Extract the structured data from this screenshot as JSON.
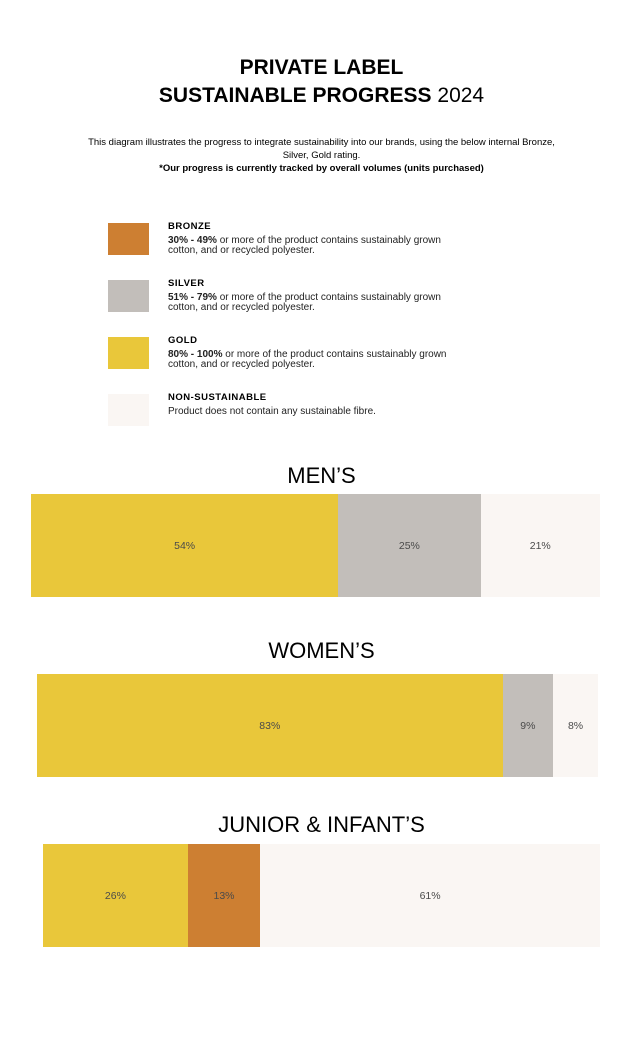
{
  "header": {
    "title_line1": "PRIVATE LABEL",
    "title_line2_bold": "SUSTAINABLE PROGRESS",
    "title_line2_year": "2024",
    "intro_line1": "This diagram illustrates the progress to integrate sustainability into our brands, using the below internal Bronze,",
    "intro_line2": "Silver, Gold rating.",
    "intro_note": "*Our progress is currently tracked by overall volumes (units purchased)"
  },
  "legend": {
    "items": [
      {
        "name": "BRONZE",
        "range": "30% - 49%",
        "desc_rest": " or more of the product contains sustainably grown",
        "desc_line2": "cotton, and or recycled polyester."
      },
      {
        "name": "SILVER",
        "range": "51% - 79%",
        "desc_rest": " or more of the product contains sustainably grown",
        "desc_line2": "cotton, and or recycled polyester."
      },
      {
        "name": "GOLD",
        "range": "80% - 100%",
        "desc_rest": " or more of the product contains sustainably grown",
        "desc_line2": "cotton, and or recycled polyester."
      },
      {
        "name": "NON-SUSTAINABLE",
        "range": "",
        "desc_rest": "Product does not contain any sustainable fibre.",
        "desc_line2": ""
      }
    ]
  },
  "colors": {
    "bronze": "#CD7F32",
    "silver": "#C2BEBA",
    "gold": "#E9C73A",
    "non_sustainable": "#FAF6F3"
  },
  "chart_data": [
    {
      "type": "bar",
      "title": "MEN’S",
      "orientation": "stacked-horizontal-100",
      "segments": [
        {
          "category": "GOLD",
          "value": 54,
          "label": "54%"
        },
        {
          "category": "SILVER",
          "value": 25,
          "label": "25%"
        },
        {
          "category": "NON-SUSTAINABLE",
          "value": 21,
          "label": "21%"
        }
      ]
    },
    {
      "type": "bar",
      "title": "WOMEN’S",
      "orientation": "stacked-horizontal-100",
      "segments": [
        {
          "category": "GOLD",
          "value": 83,
          "label": "83%"
        },
        {
          "category": "SILVER",
          "value": 9,
          "label": "9%"
        },
        {
          "category": "NON-SUSTAINABLE",
          "value": 8,
          "label": "8%"
        }
      ]
    },
    {
      "type": "bar",
      "title": "JUNIOR & INFANT’S",
      "orientation": "stacked-horizontal-100",
      "segments": [
        {
          "category": "GOLD",
          "value": 26,
          "label": "26%"
        },
        {
          "category": "BRONZE",
          "value": 13,
          "label": "13%"
        },
        {
          "category": "NON-SUSTAINABLE",
          "value": 61,
          "label": "61%"
        }
      ]
    }
  ]
}
